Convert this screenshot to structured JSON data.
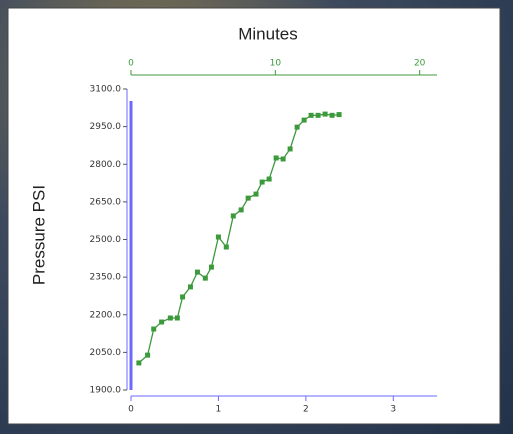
{
  "chart_data": {
    "type": "line",
    "x2label": "Minutes",
    "ylabel": "Pressure PSI",
    "x": [
      0.09,
      0.19,
      0.26,
      0.35,
      0.45,
      0.53,
      0.59,
      0.68,
      0.76,
      0.85,
      0.92,
      1.0,
      1.09,
      1.17,
      1.26,
      1.34,
      1.43,
      1.5,
      1.58,
      1.66,
      1.74,
      1.82,
      1.9,
      1.98,
      2.06,
      2.14,
      2.22,
      2.3,
      2.38
    ],
    "values": [
      2008,
      2039,
      2143,
      2171,
      2187,
      2187,
      2271,
      2311,
      2370,
      2346,
      2390,
      2510,
      2470,
      2594,
      2618,
      2665,
      2681,
      2729,
      2741,
      2825,
      2821,
      2861,
      2948,
      2976,
      2995,
      2995,
      3000,
      2995,
      2998
    ],
    "color": "#3c9a3c",
    "axis_color": "#6a6aff",
    "x2_axis_color": "#3c9a3c",
    "xlim": [
      0,
      3.5
    ],
    "xticks": [
      0,
      1,
      2,
      3
    ],
    "x2lim": [
      0,
      21.2
    ],
    "x2ticks": [
      0,
      10,
      20
    ],
    "ylim": [
      1900,
      3100
    ],
    "yticks": [
      {
        "value": 1900,
        "label": "1900.0"
      },
      {
        "value": 2050,
        "label": "2050.0"
      },
      {
        "value": 2200,
        "label": "2200.0"
      },
      {
        "value": 2350,
        "label": "2350.0"
      },
      {
        "value": 2500,
        "label": "2500.0"
      },
      {
        "value": 2650,
        "label": "2650.0"
      },
      {
        "value": 2800,
        "label": "2800.0"
      },
      {
        "value": 2950,
        "label": "2950.0"
      },
      {
        "value": 3100,
        "label": "3100.0"
      }
    ]
  }
}
